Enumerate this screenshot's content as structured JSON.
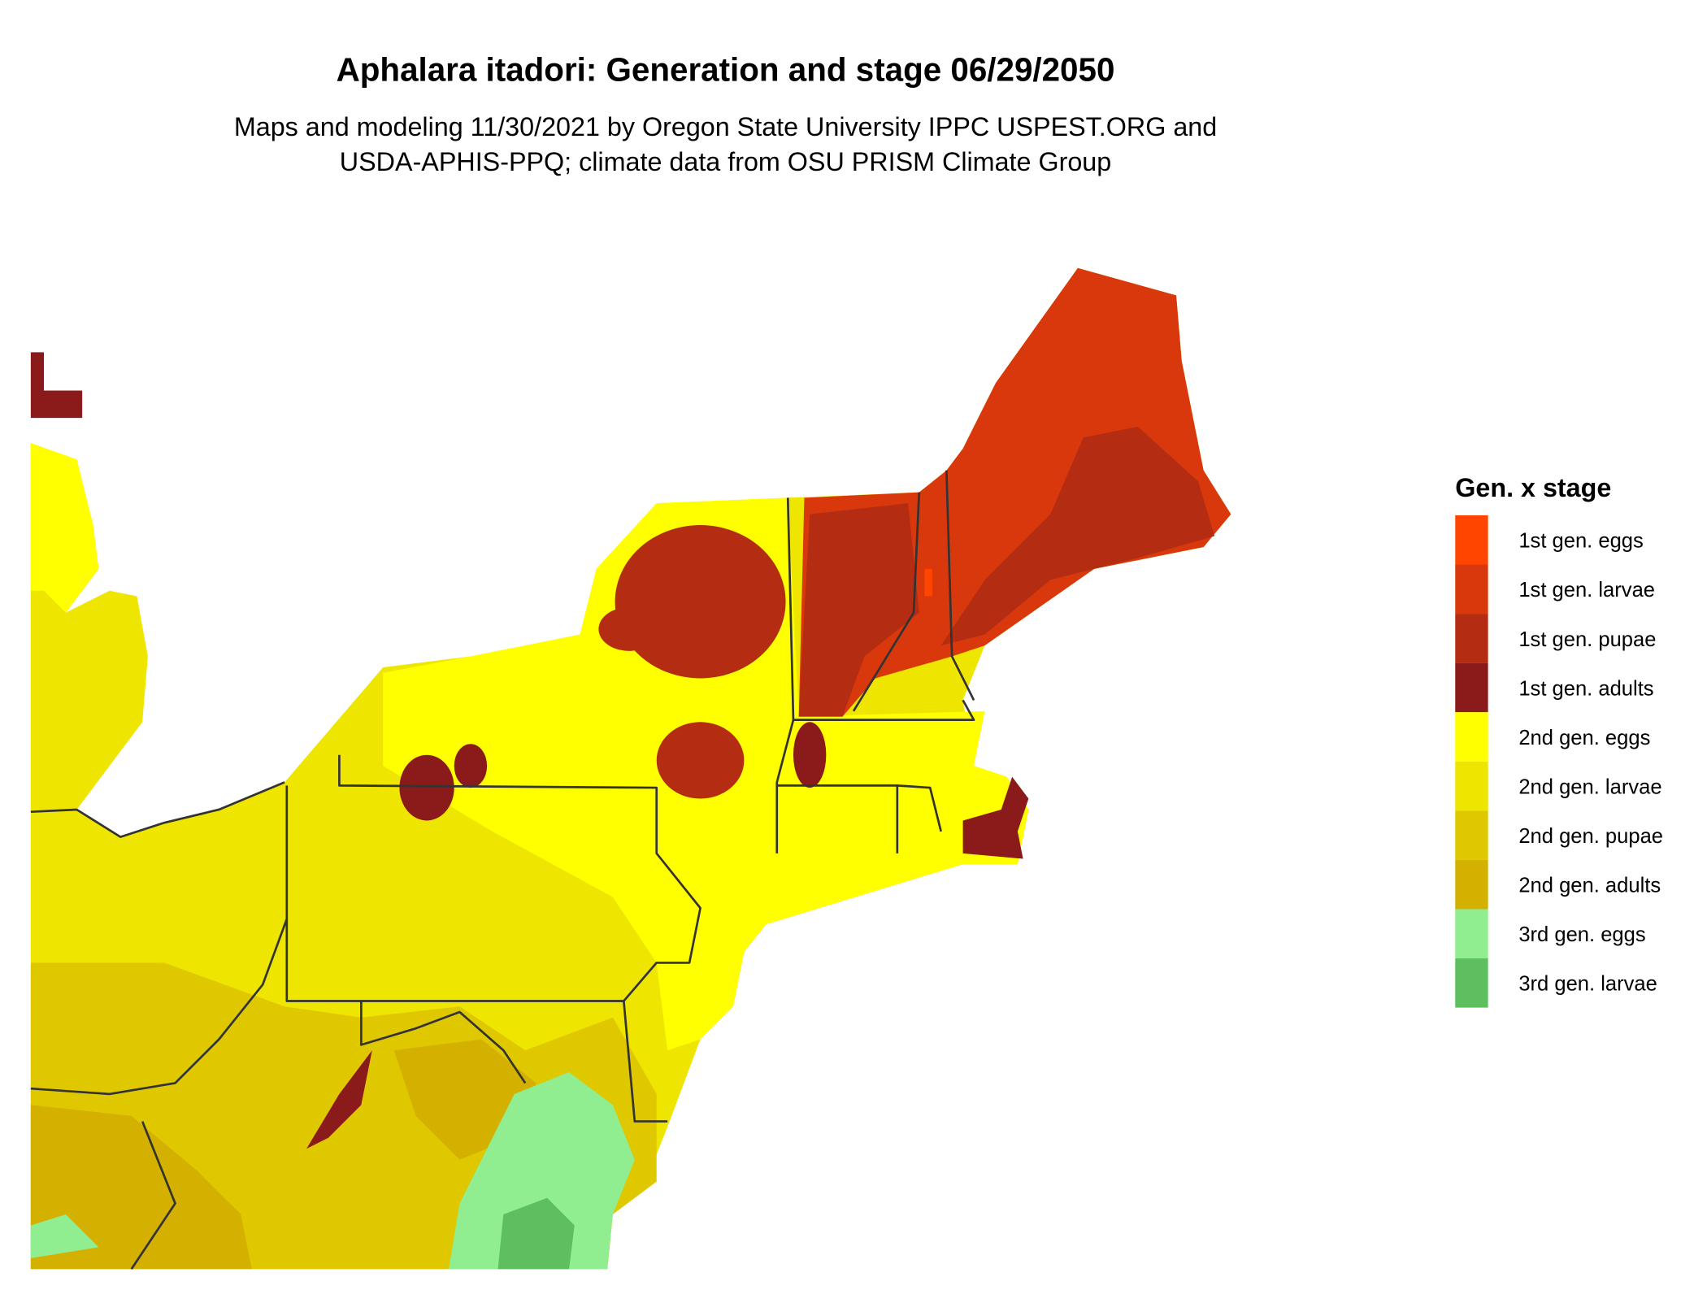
{
  "title": "Aphalara itadori: Generation and stage 06/29/2050",
  "subtitle": [
    "Maps and modeling 11/30/2021 by Oregon State University IPPC USPEST.ORG and",
    "USDA-APHIS-PPQ; climate data from OSU PRISM Climate Group"
  ],
  "legend": {
    "title": "Gen. x stage",
    "items": [
      {
        "label": "1st gen. eggs",
        "color": "#ff4500"
      },
      {
        "label": "1st gen. larvae",
        "color": "#d8380c"
      },
      {
        "label": "1st gen. pupae",
        "color": "#b42d12"
      },
      {
        "label": "1st gen. adults",
        "color": "#8b1a1a"
      },
      {
        "label": "2nd gen. eggs",
        "color": "#ffff00"
      },
      {
        "label": "2nd gen. larvae",
        "color": "#eee600"
      },
      {
        "label": "2nd gen. pupae",
        "color": "#dfc800"
      },
      {
        "label": "2nd gen. adults",
        "color": "#d4b000"
      },
      {
        "label": "3rd gen. eggs",
        "color": "#90ee90"
      },
      {
        "label": "3rd gen. larvae",
        "color": "#5dbf5d"
      }
    ]
  }
}
